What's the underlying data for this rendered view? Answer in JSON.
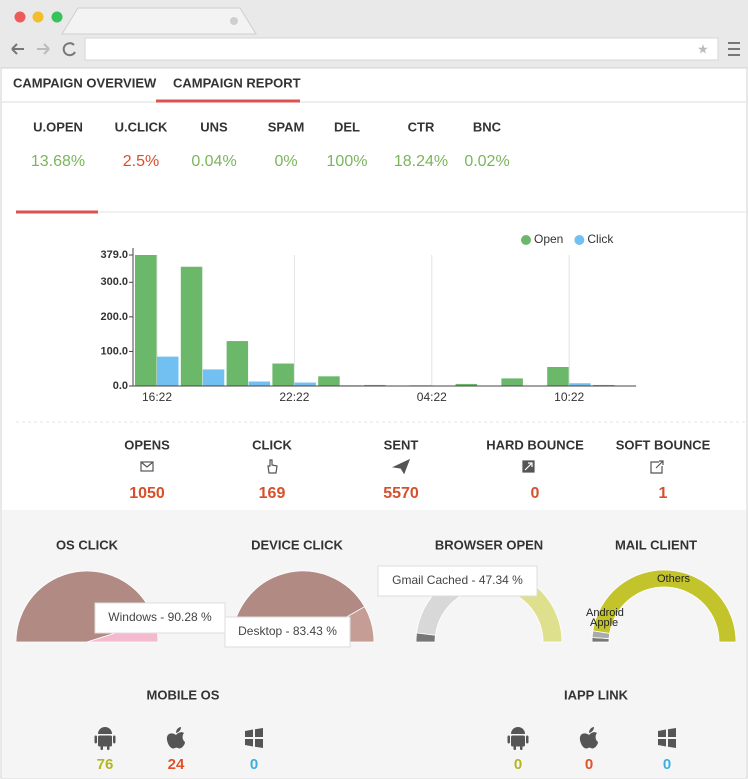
{
  "tabs": [
    "CAMPAIGN OVERVIEW",
    "CAMPAIGN REPORT"
  ],
  "metrics": [
    {
      "label": "U.OPEN",
      "value": "13.68%",
      "color": "#7ab55c"
    },
    {
      "label": "U.CLICK",
      "value": "2.5%",
      "color": "#d6502c"
    },
    {
      "label": "UNS",
      "value": "0.04%",
      "color": "#7ab55c"
    },
    {
      "label": "SPAM",
      "value": "0%",
      "color": "#7ab55c"
    },
    {
      "label": "DEL",
      "value": "100%",
      "color": "#7ab55c"
    },
    {
      "label": "CTR",
      "value": "18.24%",
      "color": "#7ab55c"
    },
    {
      "label": "BNC",
      "value": "0.02%",
      "color": "#7ab55c"
    }
  ],
  "chart": {
    "type": "bar",
    "categories": [
      "16:22",
      null,
      null,
      "22:22",
      null,
      null,
      "04:22",
      null,
      null,
      "10:22",
      null
    ],
    "series": [
      {
        "name": "Open",
        "color": "#6cb86a",
        "values": [
          379,
          345,
          130,
          65,
          28,
          3,
          2,
          6,
          22,
          55,
          3
        ]
      },
      {
        "name": "Click",
        "color": "#72c0f2",
        "values": [
          85,
          48,
          13,
          10,
          2,
          1,
          1,
          1,
          1,
          8,
          1
        ]
      }
    ],
    "ylim": [
      0,
      379
    ],
    "yticks": [
      {
        "value": 0,
        "label": "0.0"
      },
      {
        "value": 100,
        "label": "100.0"
      },
      {
        "value": 200,
        "label": "200.0"
      },
      {
        "value": 300,
        "label": "300.0"
      },
      {
        "value": 379,
        "label": "379.0"
      }
    ],
    "legend": "top-right"
  },
  "stats": [
    {
      "label": "OPENS",
      "value": 1050
    },
    {
      "label": "CLICK",
      "value": 169
    },
    {
      "label": "SENT",
      "value": 5570
    },
    {
      "label": "HARD BOUNCE",
      "value": 0
    },
    {
      "label": "SOFT BOUNCE",
      "value": 1
    }
  ],
  "gauges": [
    {
      "title": "OS CLICK",
      "segments": [
        {
          "value": 90.28,
          "color": "#b08a83",
          "label": "Windows - 90.28 %"
        },
        {
          "value": 9.72,
          "color": "#f3b9cf"
        }
      ]
    },
    {
      "title": "DEVICE CLICK",
      "segments": [
        {
          "value": 83.43,
          "color": "#b08a83",
          "label": "Desktop - 83.43 %"
        },
        {
          "value": 16.57,
          "color": "#c59d95"
        }
      ]
    },
    {
      "title": "BROWSER OPEN",
      "segments": [
        {
          "value": 4,
          "color": "#777777"
        },
        {
          "value": 47.34,
          "color": "#d8d8d8",
          "label": "Gmail Cached - 47.34 %"
        },
        {
          "value": 48.66,
          "color": "#dfe08e"
        }
      ]
    },
    {
      "title": "MAIL CLIENT",
      "segments": [
        {
          "value": 2,
          "color": "#777777",
          "label": "Apple"
        },
        {
          "value": 3,
          "color": "#aaaaaa",
          "label": "Android"
        },
        {
          "value": 95,
          "color": "#c3c42c",
          "label": "Others"
        }
      ]
    }
  ],
  "mobile_os": {
    "title": "MOBILE OS",
    "values": [
      76,
      24,
      0
    ]
  },
  "iapp_link": {
    "title": "IAPP LINK",
    "values": [
      0,
      0,
      0
    ]
  }
}
